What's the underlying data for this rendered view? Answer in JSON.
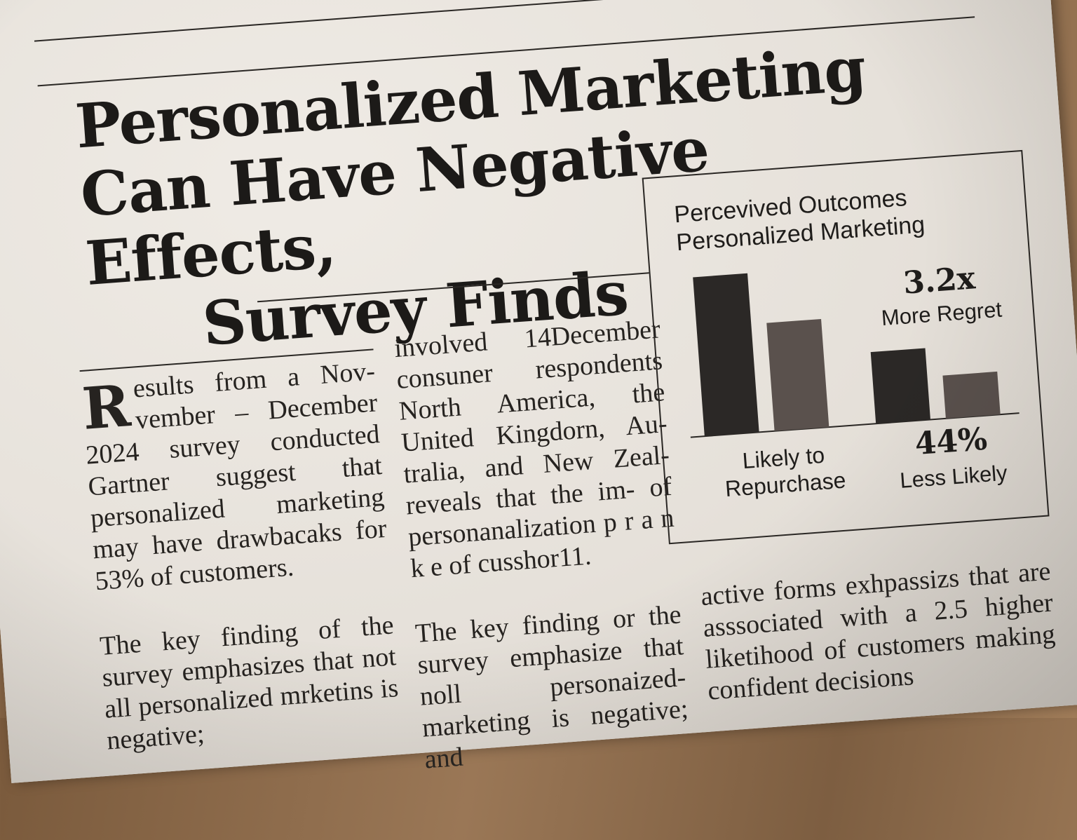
{
  "headline": {
    "line1": "Personalized Marketing",
    "line2": "Can Have Negative Effects,",
    "line3": "Survey Finds"
  },
  "columns": {
    "col1": {
      "dropcap": "R",
      "para1": "esults from a Nov- vember – December 2024 survey conducted Gartner suggest that personalized marketing may have drawbacaks for 53% of customers.",
      "para2": "The key finding of the survey emphasizes that not all personalized mrketins is negative;"
    },
    "col2": {
      "para1": "involved 14December consuner respondents North America, the United Kingdorn, Au- tralia, and New Zeal- reveals that the im- of personanalization p r a n k e of cusshor11.",
      "para2": "The key finding or the survey emphasize that noll personaized- marketing is negative; and"
    },
    "col3": {
      "para1": "active forms exhpassizs that are asssociated with a 2.5 higher liketihood of customers making confident decisions"
    }
  },
  "chart_data": {
    "type": "bar",
    "title": "Percevived Outcomes Personalized Marketing",
    "categories": [
      "Likely to Repurchase",
      "Less Likely"
    ],
    "category_label_lines": [
      [
        "Likely to",
        "Repurchase"
      ],
      [
        "44%",
        "Less Likely"
      ]
    ],
    "series": [
      {
        "values": [
          100,
          45
        ]
      },
      {
        "values": [
          68,
          27
        ]
      }
    ],
    "ylim": [
      0,
      110
    ],
    "annotations": [
      {
        "value": "3.2x",
        "text": "More Regret"
      },
      {
        "value": "44%",
        "text": "Less Likely"
      }
    ],
    "colors": [
      "#2b2826",
      "#5a514d"
    ],
    "grid": false,
    "legend": "none"
  }
}
